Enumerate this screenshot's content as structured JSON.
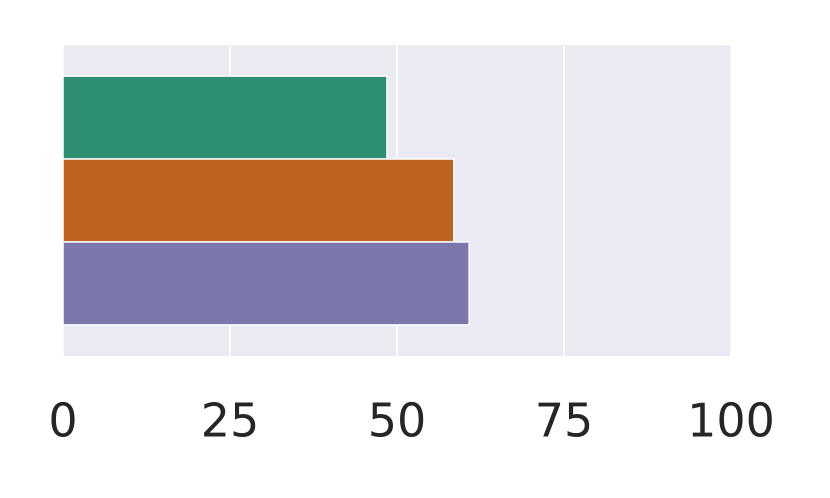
{
  "chart_data": {
    "type": "barh",
    "categories": [
      null,
      null,
      null
    ],
    "values": [
      48.5,
      58.5,
      60.8
    ],
    "colors": [
      "#2d8e72",
      "#bf6420",
      "#7b76ab"
    ],
    "xlim": [
      0,
      100
    ],
    "xticks": [
      0,
      25,
      50,
      75,
      100
    ],
    "grid": true
  }
}
